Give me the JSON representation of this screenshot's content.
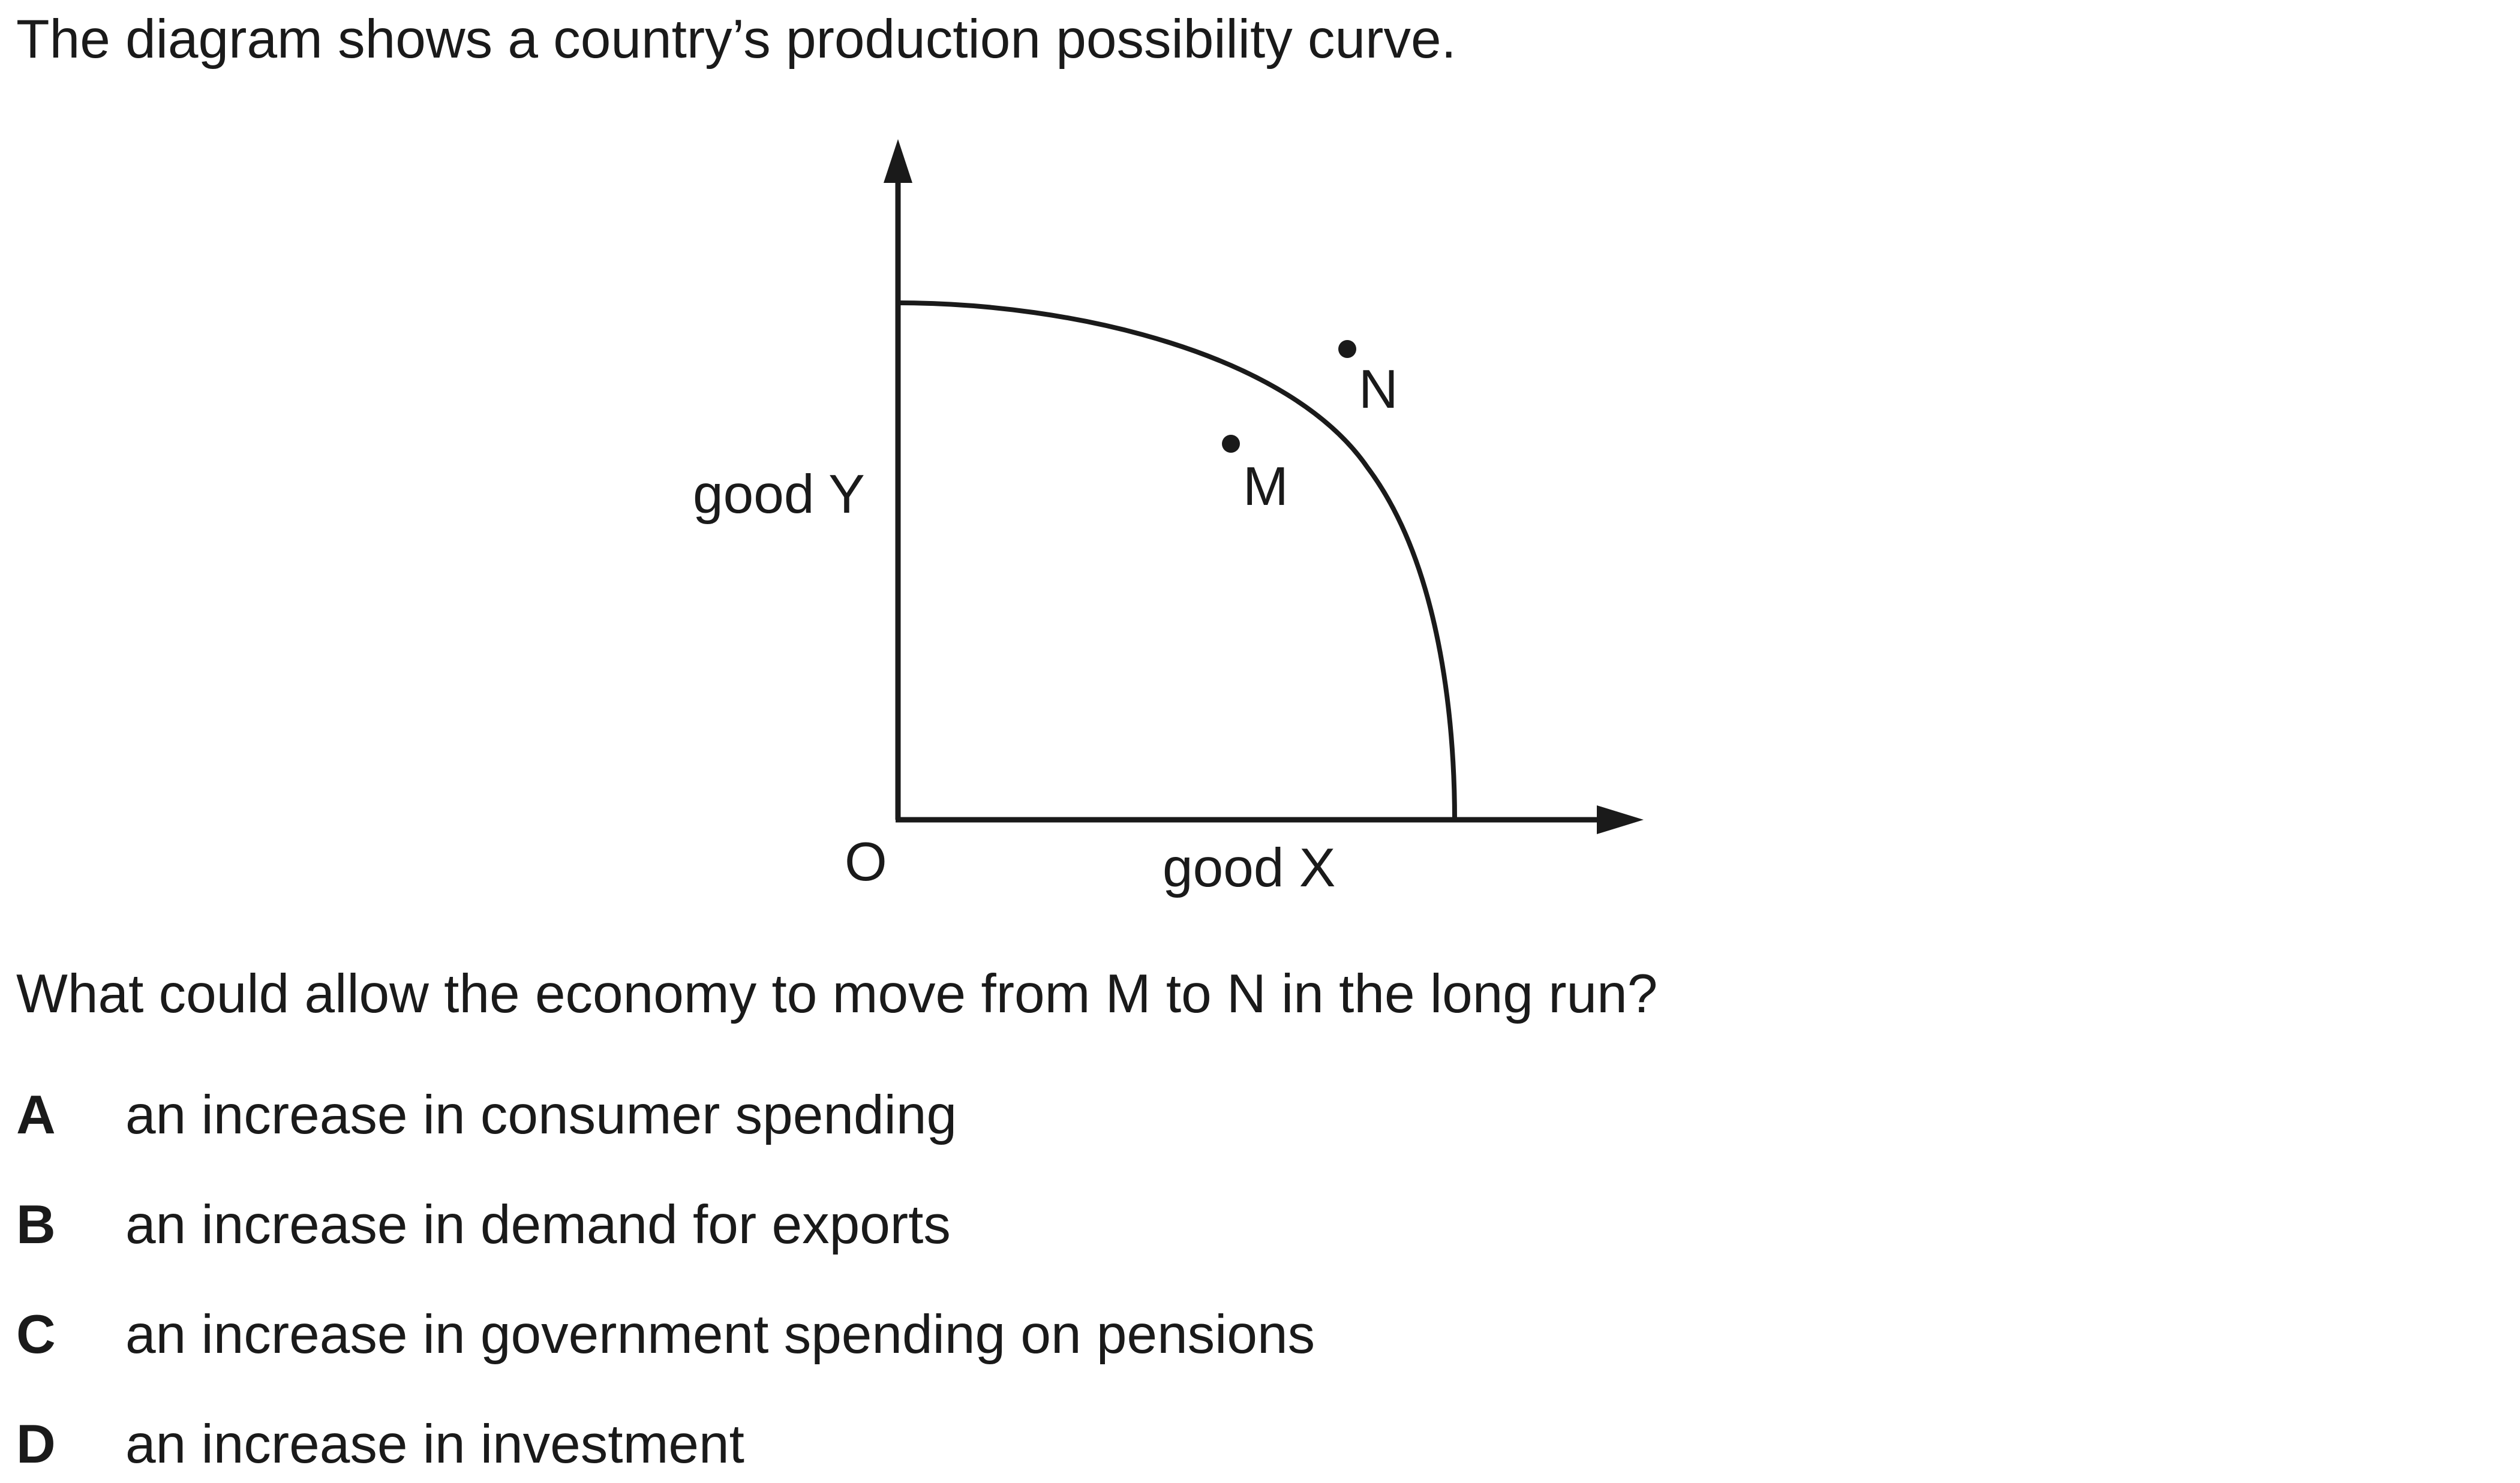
{
  "intro": "The diagram shows a country’s production possibility curve.",
  "diagram": {
    "y_axis_label": "good Y",
    "x_axis_label": "good X",
    "origin_label": "O",
    "points": [
      {
        "label": "M",
        "position": "inside the curve"
      },
      {
        "label": "N",
        "position": "outside the curve"
      }
    ],
    "curve": "production possibility curve"
  },
  "question": "What could allow the economy to move from M to N in the long run?",
  "options": [
    {
      "letter": "A",
      "text": "an increase in consumer spending"
    },
    {
      "letter": "B",
      "text": "an increase in demand for exports"
    },
    {
      "letter": "C",
      "text": "an increase in government spending on pensions"
    },
    {
      "letter": "D",
      "text": "an increase in investment"
    }
  ],
  "colors": {
    "ink": "#1a1a1a",
    "background": "#ffffff"
  }
}
